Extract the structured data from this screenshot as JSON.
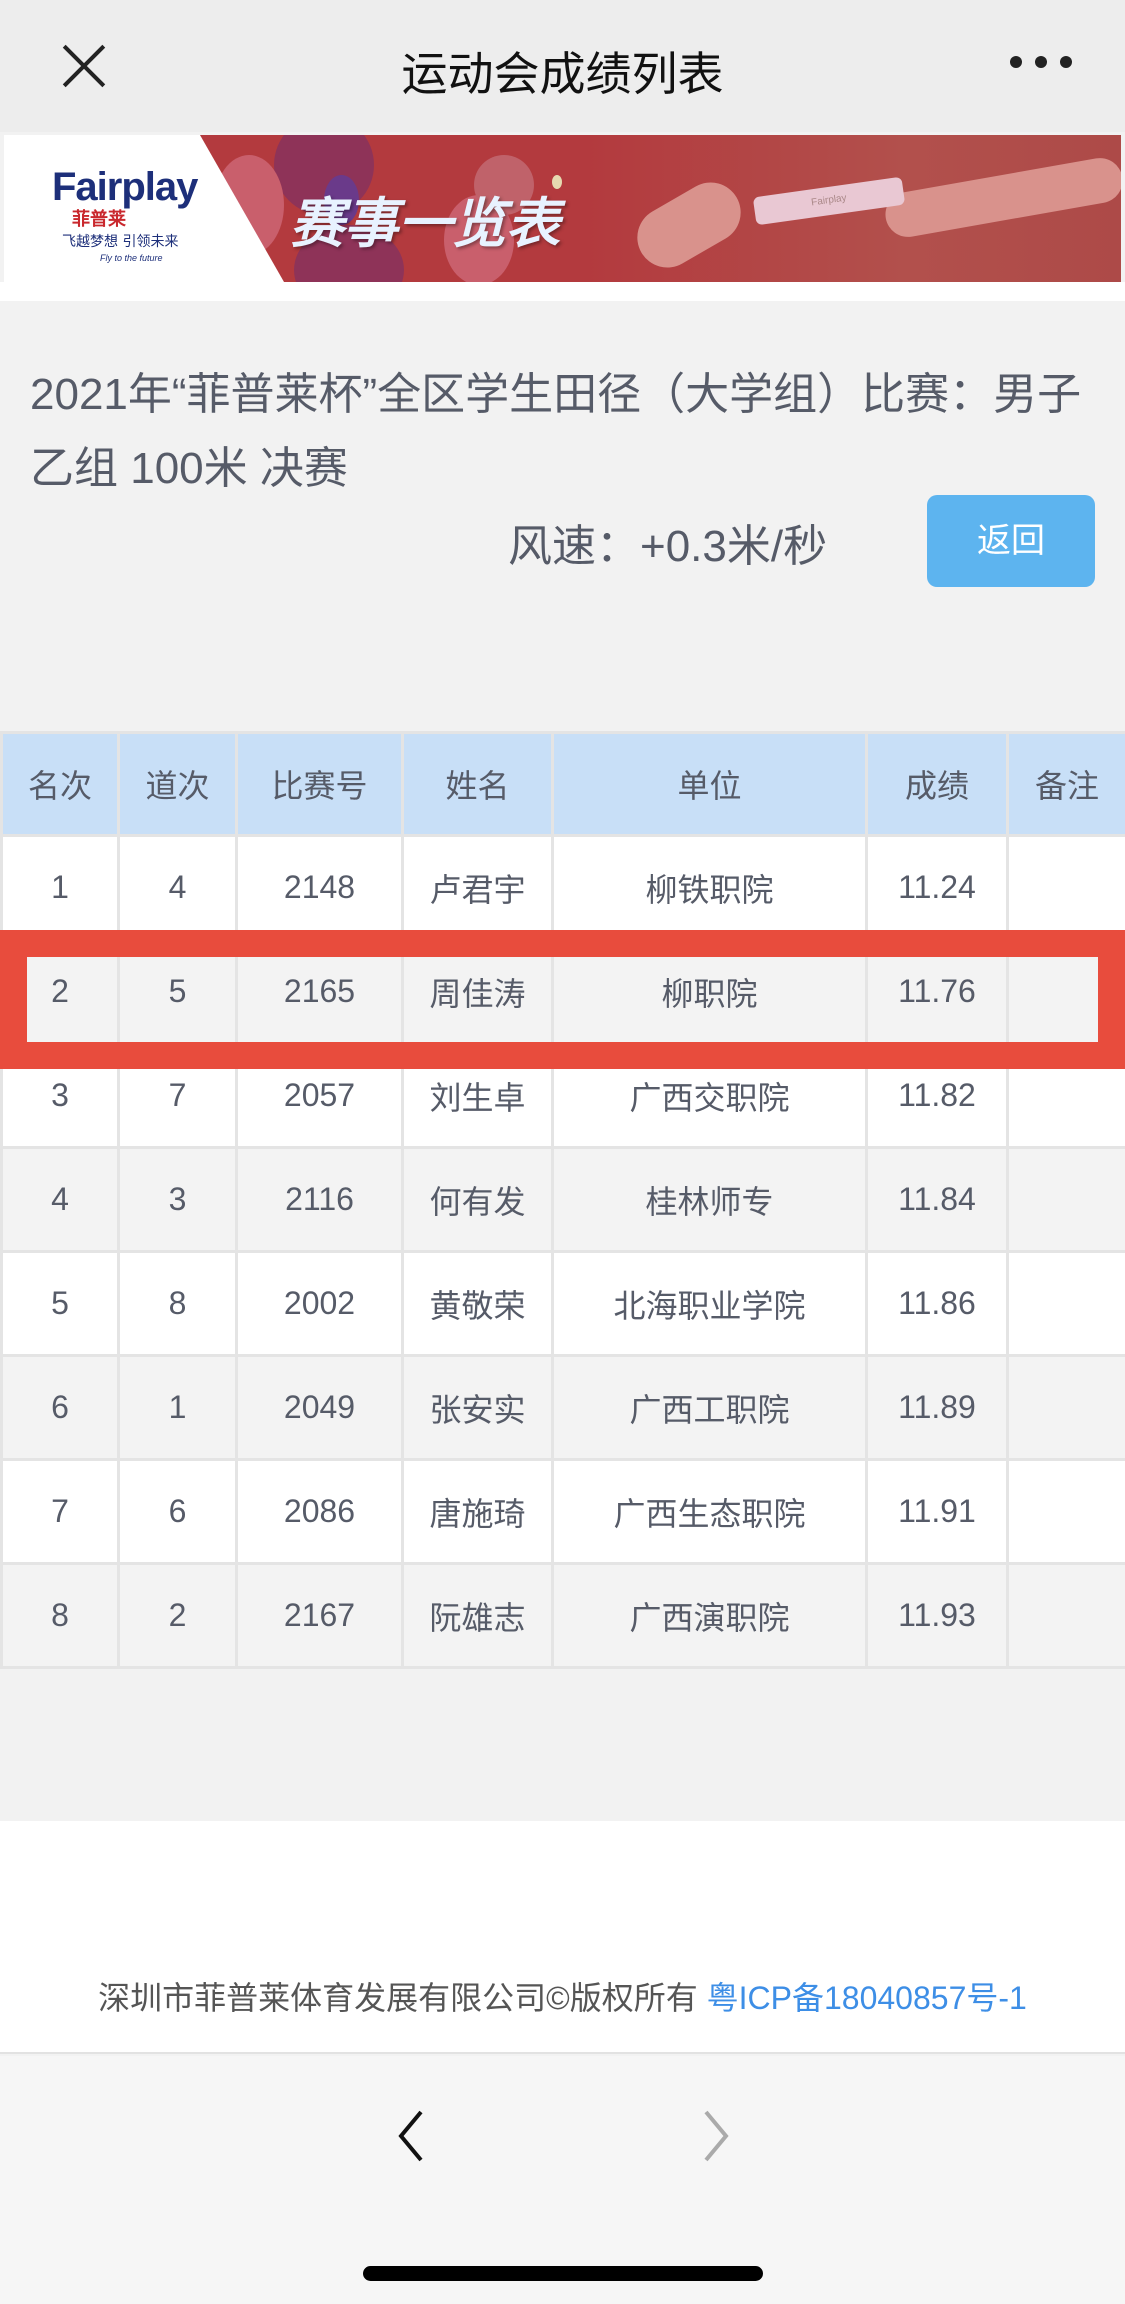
{
  "nav": {
    "title": "运动会成绩列表",
    "close_icon": "close-icon",
    "more_icon": "more-dots-icon"
  },
  "banner": {
    "logo_text": "Fairplay",
    "logo_cn": "菲普莱",
    "slogan": "飞越梦想 引领未来",
    "tagline": "Fly to the future",
    "title": "赛事一览表",
    "baton_text": "Fairplay",
    "brand_color": "#b33a3e"
  },
  "event": {
    "title": "2021年“菲普莱杯”全区学生田径（大学组）比赛：男子乙组 100米 决赛",
    "wind": "风速：+0.3米/秒",
    "back_label": "返回",
    "back_color": "#5db4ef"
  },
  "table": {
    "headers": [
      "名次",
      "道次",
      "比赛号",
      "姓名",
      "单位",
      "成绩",
      "备注"
    ],
    "rows": [
      [
        "1",
        "4",
        "2148",
        "卢君宇",
        "柳铁职院",
        "11.24",
        ""
      ],
      [
        "2",
        "5",
        "2165",
        "周佳涛",
        "柳职院",
        "11.76",
        ""
      ],
      [
        "3",
        "7",
        "2057",
        "刘生卓",
        "广西交职院",
        "11.82",
        ""
      ],
      [
        "4",
        "3",
        "2116",
        "何有发",
        "桂林师专",
        "11.84",
        ""
      ],
      [
        "5",
        "8",
        "2002",
        "黄敬荣",
        "北海职业学院",
        "11.86",
        ""
      ],
      [
        "6",
        "1",
        "2049",
        "张安实",
        "广西工职院",
        "11.89",
        ""
      ],
      [
        "7",
        "6",
        "2086",
        "唐施琦",
        "广西生态职院",
        "11.91",
        ""
      ],
      [
        "8",
        "2",
        "2167",
        "阮雄志",
        "广西演职院",
        "11.93",
        ""
      ]
    ],
    "highlighted_row": 2,
    "highlight_color": "#e84c3d"
  },
  "footer": {
    "copyright": "深圳市菲普莱体育发展有限公司©版权所有",
    "icp": "粤ICP备18040857号-1"
  },
  "toolbar": {
    "back_icon": "chevron-left-icon",
    "forward_icon": "chevron-right-icon"
  }
}
